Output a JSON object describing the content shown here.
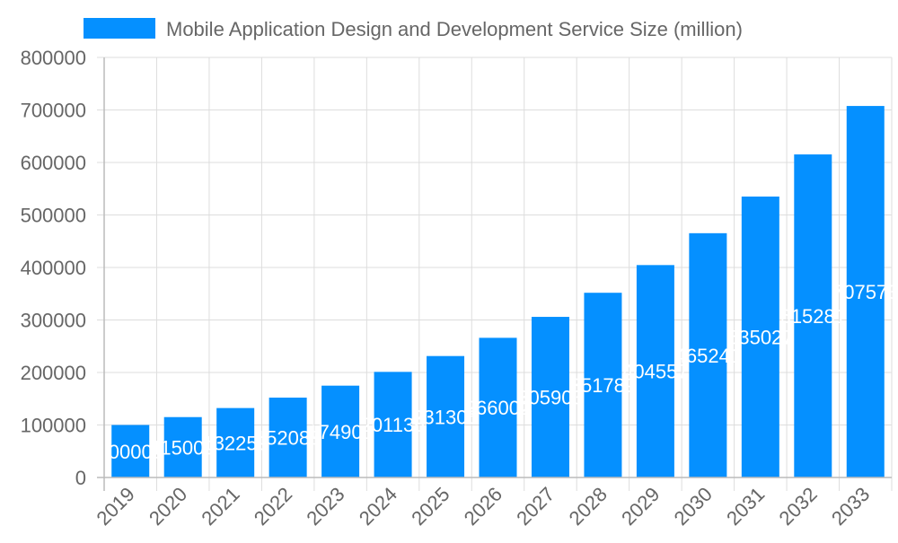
{
  "chart_data": {
    "type": "bar",
    "title": "",
    "xlabel": "",
    "ylabel": "",
    "categories": [
      "2019",
      "2020",
      "2021",
      "2022",
      "2023",
      "2024",
      "2025",
      "2026",
      "2027",
      "2028",
      "2029",
      "2030",
      "2031",
      "2032",
      "2033"
    ],
    "series": [
      {
        "name": "Mobile Application Design and Development Service Size (million)",
        "values": [
          100000,
          115000,
          132250,
          152088,
          174901,
          201136,
          231306,
          266002,
          305903,
          351789,
          404557,
          465241,
          535027,
          615281,
          707573
        ],
        "color": "#0590ff"
      }
    ],
    "ylim": [
      0,
      800000
    ],
    "yticks": [
      "0",
      "100000",
      "200000",
      "300000",
      "400000",
      "500000",
      "600000",
      "700000",
      "800000"
    ],
    "grid": true,
    "legend": "top",
    "data_labels": true
  }
}
